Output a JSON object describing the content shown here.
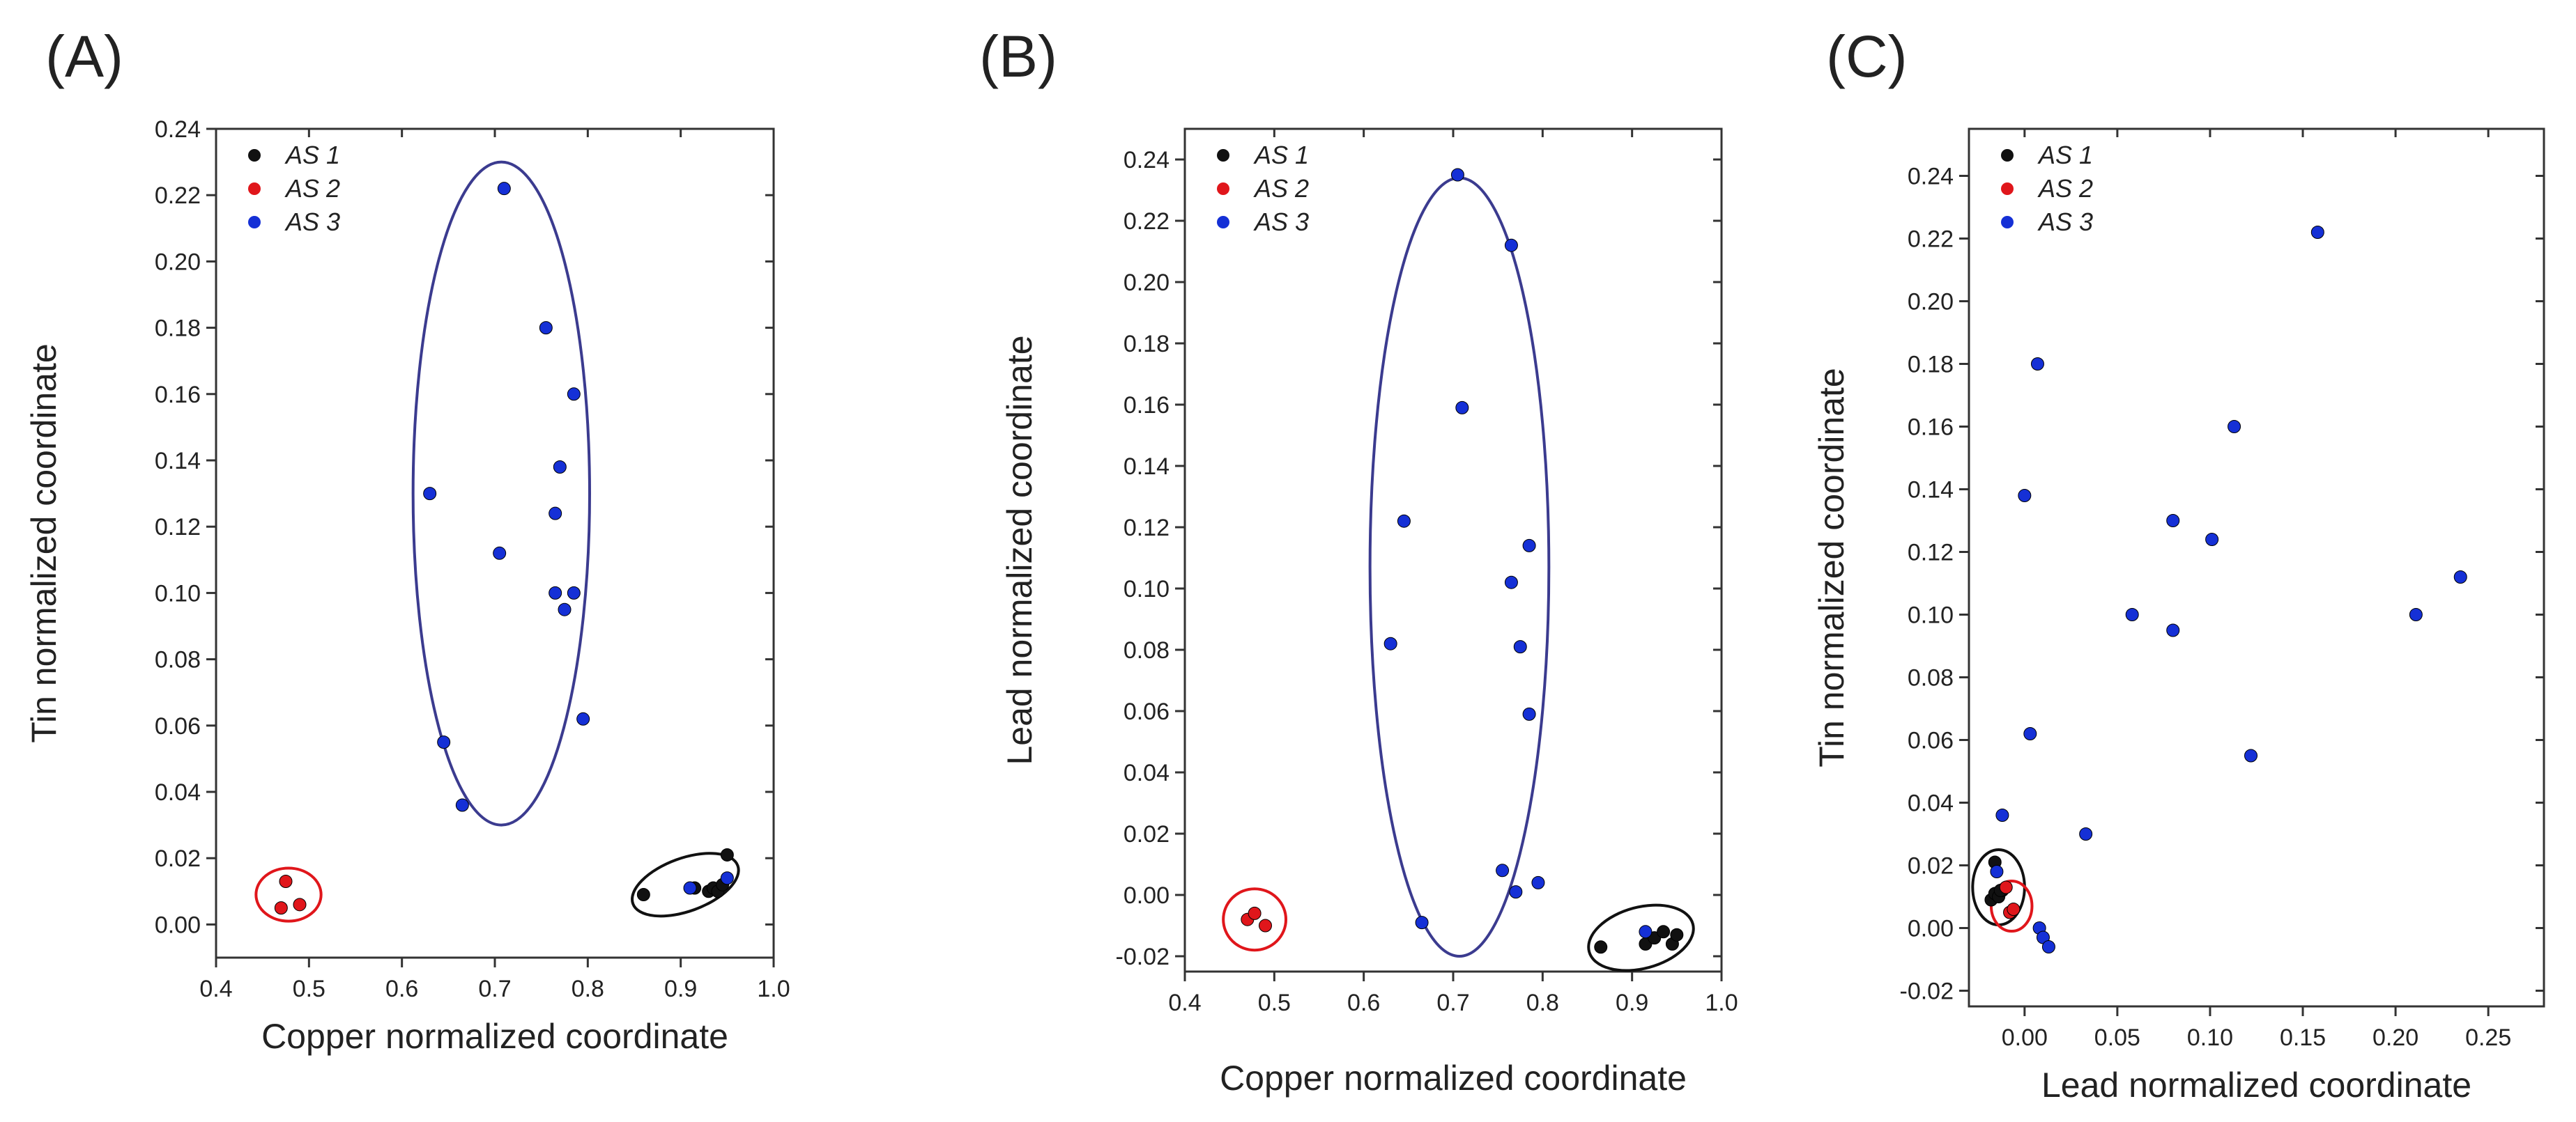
{
  "chart_data": [
    {
      "panel": "(A)",
      "type": "scatter",
      "xlabel": "Copper normalized coordinate",
      "ylabel": "Tin normalized coordinate",
      "xlim": [
        0.4,
        1.0
      ],
      "ylim": [
        -0.01,
        0.24
      ],
      "xticks": [
        "0.4",
        "0.5",
        "0.6",
        "0.7",
        "0.8",
        "0.9",
        "1.0"
      ],
      "yticks": [
        "0.00",
        "0.02",
        "0.04",
        "0.06",
        "0.08",
        "0.10",
        "0.12",
        "0.14",
        "0.16",
        "0.18",
        "0.20",
        "0.22",
        "0.24"
      ],
      "legend_position": "top-left",
      "series": [
        {
          "name": "AS 1",
          "color": "#111111",
          "points": [
            [
              0.86,
              0.009
            ],
            [
              0.915,
              0.011
            ],
            [
              0.93,
              0.01
            ],
            [
              0.935,
              0.011
            ],
            [
              0.94,
              0.01
            ],
            [
              0.945,
              0.012
            ],
            [
              0.95,
              0.021
            ]
          ]
        },
        {
          "name": "AS 2",
          "color": "#e0161b",
          "points": [
            [
              0.47,
              0.005
            ],
            [
              0.475,
              0.013
            ],
            [
              0.49,
              0.006
            ]
          ]
        },
        {
          "name": "AS 3",
          "color": "#1530d6",
          "points": [
            [
              0.71,
              0.222
            ],
            [
              0.755,
              0.18
            ],
            [
              0.785,
              0.16
            ],
            [
              0.63,
              0.13
            ],
            [
              0.77,
              0.138
            ],
            [
              0.765,
              0.124
            ],
            [
              0.705,
              0.112
            ],
            [
              0.765,
              0.1
            ],
            [
              0.785,
              0.1
            ],
            [
              0.775,
              0.095
            ],
            [
              0.795,
              0.062
            ],
            [
              0.645,
              0.055
            ],
            [
              0.665,
              0.036
            ],
            [
              0.91,
              0.011
            ],
            [
              0.95,
              0.014
            ]
          ]
        }
      ],
      "annotations": [
        {
          "shape": "ellipse",
          "color": "#3b3b8f",
          "center": [
            0.707,
            0.13
          ],
          "radii": [
            0.095,
            0.1
          ]
        },
        {
          "shape": "ellipse",
          "color": "#e0161b",
          "center": [
            0.478,
            0.009
          ],
          "radii": [
            0.035,
            0.008
          ]
        },
        {
          "shape": "ellipse",
          "color": "#111111",
          "center": [
            0.905,
            0.012
          ],
          "radii": [
            0.06,
            0.008
          ],
          "rotate": -20
        }
      ]
    },
    {
      "panel": "(B)",
      "type": "scatter",
      "xlabel": "Copper normalized coordinate",
      "ylabel": "Lead normalized coordinate",
      "xlim": [
        0.4,
        1.0
      ],
      "ylim": [
        -0.025,
        0.25
      ],
      "xticks": [
        "0.4",
        "0.5",
        "0.6",
        "0.7",
        "0.8",
        "0.9",
        "1.0"
      ],
      "yticks": [
        "-0.02",
        "0.00",
        "0.02",
        "0.04",
        "0.06",
        "0.08",
        "0.10",
        "0.12",
        "0.14",
        "0.16",
        "0.18",
        "0.20",
        "0.22",
        "0.24"
      ],
      "legend_position": "top-left",
      "series": [
        {
          "name": "AS 1",
          "color": "#111111",
          "points": [
            [
              0.865,
              -0.017
            ],
            [
              0.915,
              -0.016
            ],
            [
              0.925,
              -0.014
            ],
            [
              0.935,
              -0.012
            ],
            [
              0.945,
              -0.016
            ],
            [
              0.95,
              -0.013
            ]
          ]
        },
        {
          "name": "AS 2",
          "color": "#e0161b",
          "points": [
            [
              0.47,
              -0.008
            ],
            [
              0.478,
              -0.006
            ],
            [
              0.49,
              -0.01
            ]
          ]
        },
        {
          "name": "AS 3",
          "color": "#1530d6",
          "points": [
            [
              0.705,
              0.235
            ],
            [
              0.765,
              0.212
            ],
            [
              0.71,
              0.159
            ],
            [
              0.645,
              0.122
            ],
            [
              0.785,
              0.114
            ],
            [
              0.765,
              0.102
            ],
            [
              0.63,
              0.082
            ],
            [
              0.775,
              0.081
            ],
            [
              0.785,
              0.059
            ],
            [
              0.755,
              0.008
            ],
            [
              0.795,
              0.004
            ],
            [
              0.77,
              0.001
            ],
            [
              0.665,
              -0.009
            ],
            [
              0.915,
              -0.012
            ]
          ]
        }
      ],
      "annotations": [
        {
          "shape": "ellipse",
          "color": "#3b3b8f",
          "center": [
            0.707,
            0.107
          ],
          "radii": [
            0.1,
            0.127
          ]
        },
        {
          "shape": "ellipse",
          "color": "#e0161b",
          "center": [
            0.478,
            -0.008
          ],
          "radii": [
            0.035,
            0.01
          ]
        },
        {
          "shape": "ellipse",
          "color": "#111111",
          "center": [
            0.91,
            -0.014
          ],
          "radii": [
            0.06,
            0.01
          ],
          "rotate": -15
        }
      ]
    },
    {
      "panel": "(C)",
      "type": "scatter",
      "xlabel": "Lead normalized coordinate",
      "ylabel": "Tin normalized coordinate",
      "xlim": [
        -0.03,
        0.28
      ],
      "ylim": [
        -0.025,
        0.255
      ],
      "xticks": [
        "0.00",
        "0.05",
        "0.10",
        "0.15",
        "0.20",
        "0.25"
      ],
      "yticks": [
        "-0.02",
        "0.00",
        "0.02",
        "0.04",
        "0.06",
        "0.08",
        "0.10",
        "0.12",
        "0.14",
        "0.16",
        "0.18",
        "0.20",
        "0.22",
        "0.24"
      ],
      "legend_position": "top-left",
      "series": [
        {
          "name": "AS 1",
          "color": "#111111",
          "points": [
            [
              -0.018,
              0.009
            ],
            [
              -0.016,
              0.011
            ],
            [
              -0.014,
              0.01
            ],
            [
              -0.012,
              0.012
            ],
            [
              -0.016,
              0.021
            ],
            [
              -0.013,
              0.012
            ]
          ]
        },
        {
          "name": "AS 2",
          "color": "#e0161b",
          "points": [
            [
              -0.01,
              0.013
            ],
            [
              -0.008,
              0.005
            ],
            [
              -0.006,
              0.006
            ]
          ]
        },
        {
          "name": "AS 3",
          "color": "#1530d6",
          "points": [
            [
              0.158,
              0.222
            ],
            [
              0.007,
              0.18
            ],
            [
              0.113,
              0.16
            ],
            [
              0.0,
              0.138
            ],
            [
              0.08,
              0.13
            ],
            [
              0.101,
              0.124
            ],
            [
              0.235,
              0.112
            ],
            [
              0.058,
              0.1
            ],
            [
              0.211,
              0.1
            ],
            [
              0.08,
              0.095
            ],
            [
              0.003,
              0.062
            ],
            [
              0.122,
              0.055
            ],
            [
              -0.012,
              0.036
            ],
            [
              0.033,
              0.03
            ],
            [
              -0.015,
              0.018
            ],
            [
              0.008,
              0.0
            ],
            [
              0.01,
              -0.003
            ],
            [
              0.013,
              -0.006
            ]
          ]
        }
      ],
      "annotations": [
        {
          "shape": "ellipse",
          "color": "#111111",
          "center": [
            -0.014,
            0.013
          ],
          "radii": [
            0.014,
            0.012
          ]
        },
        {
          "shape": "ellipse",
          "color": "#e0161b",
          "center": [
            -0.007,
            0.007
          ],
          "radii": [
            0.011,
            0.008
          ]
        }
      ]
    }
  ]
}
